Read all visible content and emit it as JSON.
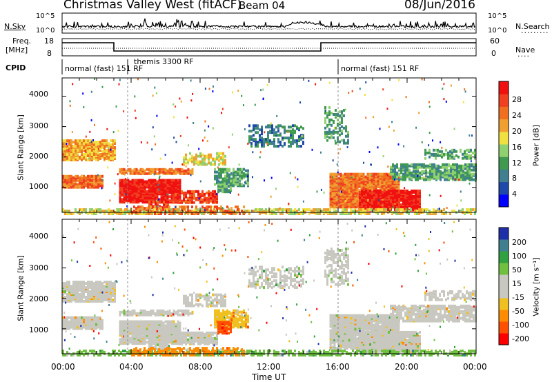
{
  "header": {
    "title": "Christmas Valley West (fitACF)",
    "beam": "Beam 04",
    "date": "08/Jun/2016"
  },
  "panels": {
    "noise": {
      "left_label": "N.Sky",
      "right_label": "N.Search",
      "ticks_left": [
        "10^5",
        "10^0"
      ],
      "ticks_right": [
        "10^5",
        "10^0"
      ]
    },
    "freq": {
      "left_label_1": "Freq.",
      "left_label_2": "[MHz]",
      "right_label": "Nave",
      "ticks_left": [
        "18",
        "8"
      ],
      "ticks_right": [
        "60",
        "0"
      ]
    },
    "cpid": {
      "label": "CPID",
      "segments": [
        {
          "start_h": 0,
          "end_h": 3.8,
          "label": "normal (fast) 151 RF"
        },
        {
          "start_h": 3.8,
          "end_h": 16,
          "label": "themis 3300 RF"
        },
        {
          "start_h": 16,
          "end_h": 24,
          "label": "normal (fast) 151 RF"
        }
      ]
    }
  },
  "chart_data": [
    {
      "type": "heatmap",
      "title": "Power",
      "xlabel": "",
      "ylabel": "Slant Range [km]",
      "xlim_h": [
        0,
        24
      ],
      "ylim_km": [
        180,
        4600
      ],
      "y_ticks": [
        "1000",
        "2000",
        "3000",
        "4000"
      ],
      "colorbar": {
        "label": "Power [dB]",
        "ticks": [
          "28",
          "24",
          "20",
          "16",
          "12",
          "8",
          "4"
        ],
        "colors": [
          "#0000ff",
          "#1f49a8",
          "#3f7f8f",
          "#3f9a50",
          "#8fd06f",
          "#f0e040",
          "#f0a030",
          "#f07020",
          "#f04020",
          "#f01010"
        ]
      }
    },
    {
      "type": "heatmap",
      "title": "Velocity",
      "xlabel": "Time UT",
      "ylabel": "Slant Range [km]",
      "xlim_h": [
        0,
        24
      ],
      "ylim_km": [
        180,
        4600
      ],
      "x_ticks": [
        "00:00",
        "04:00",
        "08:00",
        "12:00",
        "16:00",
        "20:00",
        "00:00"
      ],
      "y_ticks": [
        "1000",
        "2000",
        "3000",
        "4000"
      ],
      "colorbar": {
        "label": "Velocity [m s⁻¹]",
        "ticks": [
          "200",
          "100",
          "50",
          "15",
          "-15",
          "-50",
          "-100",
          "-200"
        ],
        "colors": [
          "#ff0000",
          "#ff5000",
          "#ff8c00",
          "#f0c020",
          "#c8c8c0",
          "#c8c8c0",
          "#70c040",
          "#30a040",
          "#3f7f8f",
          "#1f2fa8"
        ]
      }
    }
  ]
}
